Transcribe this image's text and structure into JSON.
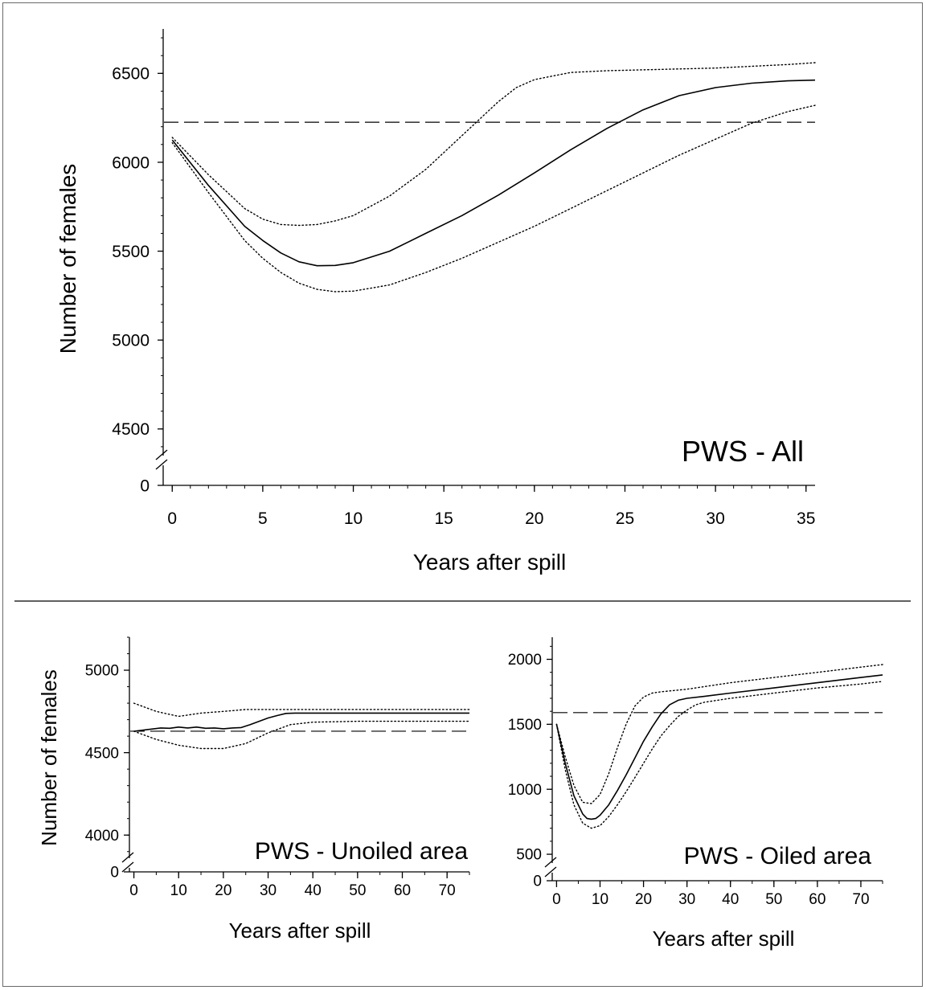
{
  "chart_data": [
    {
      "type": "line",
      "panel": "top",
      "annotation": "PWS - All",
      "xlabel": "Years after spill",
      "ylabel": "Number of females",
      "xlim": [
        -0.5,
        35.5
      ],
      "y_axis_break": true,
      "grid": false,
      "x_ticks": [
        0,
        5,
        10,
        15,
        20,
        25,
        30,
        35
      ],
      "y_ticks": [
        0,
        4500,
        5000,
        5500,
        6000,
        6500
      ],
      "y_range_above_break": [
        4350,
        6750
      ],
      "reference_line": 6225,
      "series": [
        {
          "role": "mean",
          "style": "solid",
          "x": [
            0,
            2,
            4,
            5,
            6,
            7,
            8,
            9,
            10,
            12,
            14,
            16,
            18,
            20,
            22,
            24,
            26,
            28,
            30,
            32,
            34,
            35.5
          ],
          "y": [
            6125,
            5870,
            5640,
            5560,
            5490,
            5440,
            5418,
            5420,
            5435,
            5500,
            5600,
            5700,
            5815,
            5940,
            6070,
            6190,
            6295,
            6375,
            6420,
            6445,
            6458,
            6462
          ]
        },
        {
          "role": "upper",
          "style": "dotted",
          "x": [
            0,
            2,
            4,
            5,
            6,
            7,
            8,
            9,
            10,
            12,
            14,
            16,
            18,
            19,
            20,
            22,
            24,
            26,
            28,
            30,
            32,
            34,
            35.5
          ],
          "y": [
            6140,
            5930,
            5740,
            5680,
            5650,
            5645,
            5650,
            5670,
            5700,
            5810,
            5960,
            6150,
            6340,
            6420,
            6465,
            6505,
            6515,
            6520,
            6525,
            6530,
            6540,
            6550,
            6560
          ]
        },
        {
          "role": "lower",
          "style": "dotted",
          "x": [
            0,
            2,
            4,
            5,
            6,
            7,
            8,
            9,
            10,
            12,
            14,
            16,
            18,
            20,
            22,
            24,
            26,
            28,
            30,
            32,
            34,
            35.5
          ],
          "y": [
            6110,
            5830,
            5560,
            5460,
            5380,
            5320,
            5285,
            5272,
            5275,
            5310,
            5380,
            5460,
            5550,
            5640,
            5740,
            5840,
            5940,
            6040,
            6130,
            6220,
            6285,
            6320
          ]
        }
      ]
    },
    {
      "type": "line",
      "panel": "bottom-left",
      "annotation": "PWS - Unoiled area",
      "xlabel": "Years after spill",
      "ylabel": "Number of females",
      "xlim": [
        -1,
        75
      ],
      "y_axis_break": true,
      "grid": false,
      "x_ticks": [
        0,
        10,
        20,
        30,
        40,
        50,
        60,
        70
      ],
      "y_ticks": [
        0,
        4000,
        4500,
        5000
      ],
      "y_range_above_break": [
        3850,
        5200
      ],
      "reference_line": 4630,
      "series": [
        {
          "role": "mean",
          "style": "solid",
          "x": [
            0,
            3,
            6,
            8,
            10,
            12,
            14,
            16,
            18,
            20,
            22,
            24,
            26,
            28,
            30,
            32,
            34,
            36,
            40,
            50,
            60,
            70,
            75
          ],
          "y": [
            4630,
            4640,
            4650,
            4648,
            4655,
            4650,
            4655,
            4648,
            4650,
            4645,
            4650,
            4652,
            4670,
            4690,
            4710,
            4725,
            4738,
            4740,
            4740,
            4740,
            4740,
            4740,
            4740
          ]
        },
        {
          "role": "upper",
          "style": "dotted",
          "x": [
            0,
            5,
            10,
            15,
            20,
            25,
            30,
            40,
            50,
            60,
            70,
            75
          ],
          "y": [
            4800,
            4750,
            4720,
            4740,
            4750,
            4762,
            4762,
            4762,
            4762,
            4762,
            4762,
            4762
          ]
        },
        {
          "role": "lower",
          "style": "dotted",
          "x": [
            0,
            5,
            10,
            15,
            20,
            25,
            30,
            35,
            40,
            50,
            60,
            70,
            75
          ],
          "y": [
            4630,
            4580,
            4545,
            4525,
            4525,
            4555,
            4620,
            4670,
            4685,
            4690,
            4690,
            4690,
            4690
          ]
        }
      ]
    },
    {
      "type": "line",
      "panel": "bottom-right",
      "annotation": "PWS - Oiled area",
      "xlabel": "Years after spill",
      "ylabel": "",
      "xlim": [
        -1,
        75
      ],
      "y_axis_break": true,
      "grid": false,
      "x_ticks": [
        0,
        10,
        20,
        30,
        40,
        50,
        60,
        70
      ],
      "y_ticks": [
        0,
        500,
        1000,
        1500,
        2000
      ],
      "y_range_above_break": [
        420,
        2170
      ],
      "reference_line": 1590,
      "series": [
        {
          "role": "mean",
          "style": "solid",
          "x": [
            0,
            2,
            4,
            6,
            7,
            8,
            9,
            10,
            12,
            14,
            16,
            18,
            20,
            22,
            24,
            26,
            28,
            30,
            34,
            40,
            50,
            60,
            70,
            75
          ],
          "y": [
            1500,
            1200,
            950,
            810,
            775,
            770,
            775,
            800,
            880,
            990,
            1110,
            1240,
            1370,
            1480,
            1580,
            1650,
            1685,
            1700,
            1715,
            1740,
            1780,
            1820,
            1860,
            1880
          ]
        },
        {
          "role": "upper",
          "style": "dotted",
          "x": [
            0,
            2,
            4,
            6,
            8,
            10,
            12,
            14,
            16,
            18,
            20,
            22,
            24,
            30,
            40,
            50,
            60,
            70,
            75
          ],
          "y": [
            1500,
            1250,
            1030,
            900,
            890,
            960,
            1120,
            1320,
            1500,
            1640,
            1710,
            1740,
            1750,
            1770,
            1820,
            1860,
            1900,
            1940,
            1960
          ]
        },
        {
          "role": "lower",
          "style": "dotted",
          "x": [
            0,
            2,
            4,
            6,
            8,
            10,
            12,
            14,
            16,
            18,
            20,
            22,
            24,
            26,
            28,
            30,
            32,
            34,
            40,
            50,
            60,
            70,
            75
          ],
          "y": [
            1500,
            1150,
            880,
            740,
            700,
            720,
            790,
            880,
            980,
            1090,
            1200,
            1310,
            1410,
            1490,
            1560,
            1610,
            1650,
            1670,
            1700,
            1740,
            1780,
            1810,
            1830
          ]
        }
      ]
    }
  ]
}
